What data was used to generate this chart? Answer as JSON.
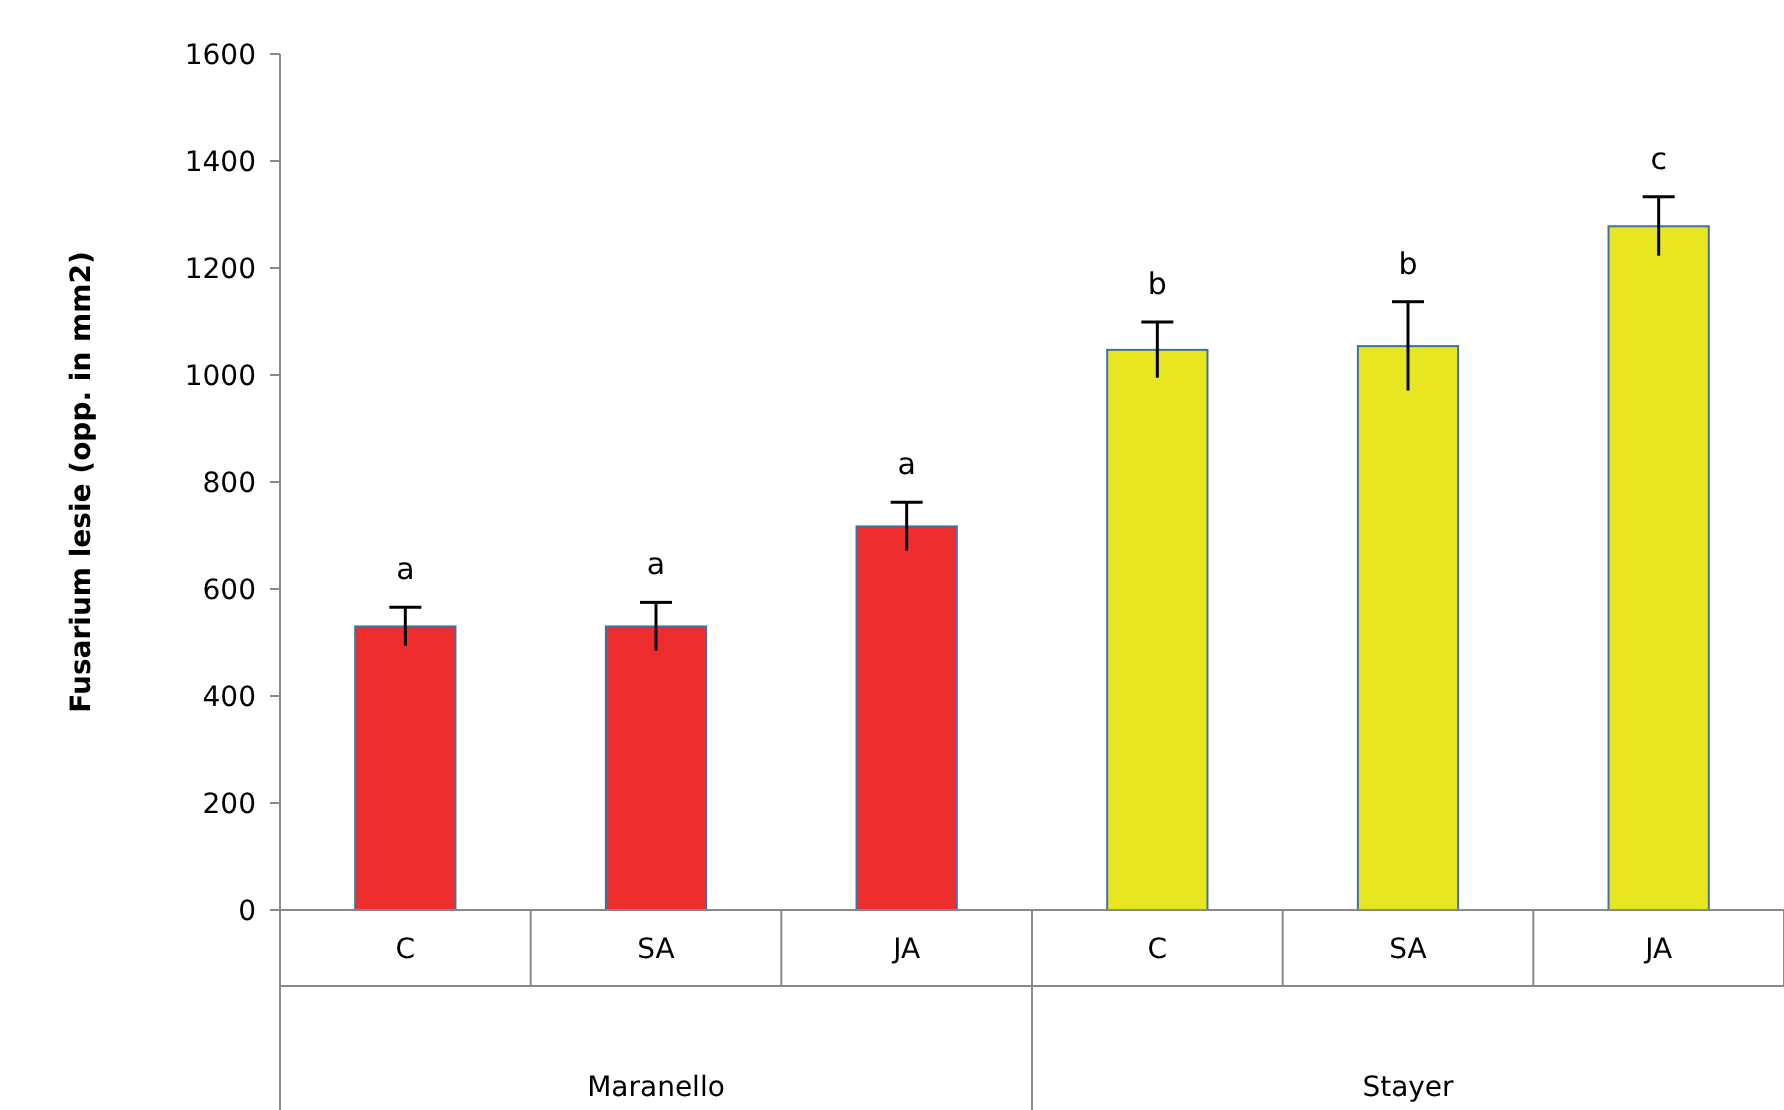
{
  "chart_data": {
    "type": "bar",
    "ylabel": "Fusarium lesie (opp. in mm2)",
    "categories": [
      "C",
      "SA",
      "JA",
      "C",
      "SA",
      "JA"
    ],
    "values": [
      530,
      530,
      717,
      1047,
      1054,
      1278
    ],
    "errors": [
      36,
      45,
      45,
      52,
      83,
      55
    ],
    "colors": [
      "#ee2e2e",
      "#ee2e2e",
      "#ee2e2e",
      "#e8e620",
      "#e8e620",
      "#e8e620"
    ],
    "ylim": [
      0,
      1600
    ],
    "yticks": [
      0,
      200,
      400,
      600,
      800,
      1000,
      1200,
      1400,
      1600
    ],
    "annotations": [
      "a",
      "a",
      "a",
      "b",
      "b",
      "c",
      "Maranello",
      "Stayer"
    ]
  }
}
